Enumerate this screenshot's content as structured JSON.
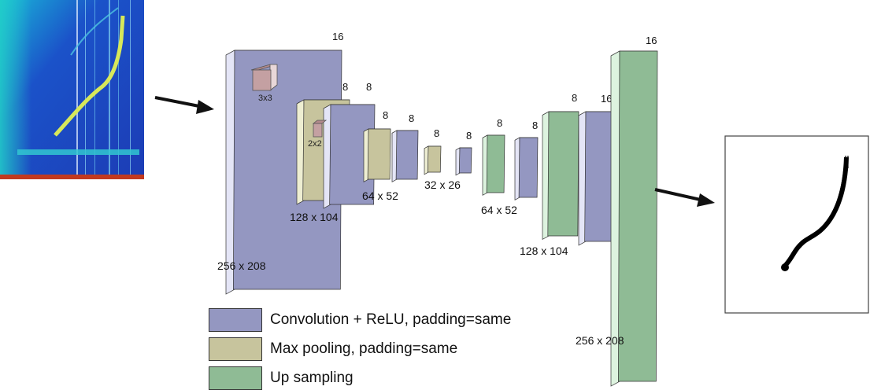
{
  "colors": {
    "conv": "#9497C1",
    "conv_side": "#E4E5F6",
    "conv_top": "#6E72A6",
    "pool": "#C7C49D",
    "pool_side": "#EEEED2",
    "pool_top": "#A09D72",
    "upsample": "#8FBB95",
    "upsample_side": "#DDF3DF",
    "upsample_top": "#6D9A73",
    "kernel": "#C4A0A2",
    "arrow": "#111111",
    "spectrogram_bg": "#1B52C9",
    "spectrogram_trace": "#D7E85A"
  },
  "layers": [
    {
      "kind": "conv",
      "depth": "16",
      "size": "256 x 208"
    },
    {
      "kind": "pool",
      "depth": "8",
      "size": "128 x 104"
    },
    {
      "kind": "conv",
      "depth": "8"
    },
    {
      "kind": "pool",
      "depth": "8",
      "size": "64 x 52"
    },
    {
      "kind": "conv",
      "depth": "8"
    },
    {
      "kind": "pool",
      "depth": "8",
      "size": "32 x 26"
    },
    {
      "kind": "conv",
      "depth": "8"
    },
    {
      "kind": "upsample",
      "depth": "8",
      "size": "64 x 52"
    },
    {
      "kind": "conv",
      "depth": "8"
    },
    {
      "kind": "upsample",
      "depth": "8",
      "size": "128 x 104"
    },
    {
      "kind": "conv",
      "depth": "16"
    },
    {
      "kind": "upsample",
      "depth": "16",
      "size": "256 x 208"
    }
  ],
  "kernels": {
    "conv_label": "3x3",
    "pool_label": "2x2"
  },
  "legend": [
    {
      "kind": "conv",
      "label": "Convolution + ReLU, padding=same"
    },
    {
      "kind": "pool",
      "label": "Max pooling, padding=same"
    },
    {
      "kind": "upsample",
      "label": "Up sampling"
    }
  ]
}
